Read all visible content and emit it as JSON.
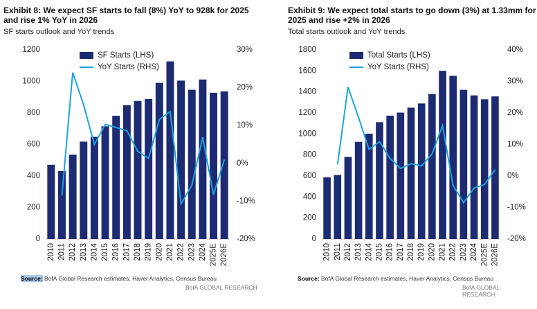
{
  "chart_data": [
    {
      "type": "combo",
      "title": "Exhibit 8: We expect SF starts to fall (8%) YoY to 928k for 2025 and rise 1% YoY in 2026",
      "subtitle": "SF starts outlook and YoY trends",
      "categories": [
        "2010",
        "2011",
        "2012",
        "2013",
        "2014",
        "2015",
        "2016",
        "2017",
        "2018",
        "2019",
        "2020",
        "2021",
        "2022",
        "2023",
        "2024",
        "2025E",
        "2026E"
      ],
      "series": [
        {
          "name": "SF Starts (LHS)",
          "color": "#1c2b72",
          "kind": "bar",
          "values": [
            471,
            431,
            535,
            618,
            648,
            715,
            782,
            849,
            876,
            888,
            991,
            1127,
            1005,
            947,
            1012,
            928,
            937
          ]
        },
        {
          "name": "YoY Starts (RHS)",
          "color": "#1ba1e2",
          "kind": "line",
          "axis": "y2",
          "values": [
            null,
            -8.5,
            24,
            15.5,
            5,
            10.3,
            9.5,
            8.6,
            3.2,
            1.3,
            11.6,
            13.7,
            -10.7,
            -5.8,
            6.9,
            -8.3,
            1.0
          ]
        }
      ],
      "ylim": [
        0,
        1200
      ],
      "yticks": [
        0,
        200,
        400,
        600,
        800,
        1000,
        1200
      ],
      "y2lim": [
        -20,
        30
      ],
      "y2ticks": [
        {
          "value": -20,
          "label": "-20%"
        },
        {
          "value": -10,
          "label": "-10%"
        },
        {
          "value": 0,
          "label": "0%"
        },
        {
          "value": 10,
          "label": "10%"
        },
        {
          "value": 20,
          "label": "20%"
        },
        {
          "value": 30,
          "label": "30%"
        }
      ],
      "source_label": "Source:",
      "source": "BofA Global Research estimates, Haver Analytics, Census Bureau",
      "footer": "BofA GLOBAL RESEARCH"
    },
    {
      "type": "combo",
      "title": "Exhibit 9: We expect total starts to go down (3%) at 1.33mm for 2025 and rise +2% in 2026",
      "subtitle": "Total starts outlook and YoY trends",
      "categories": [
        "2010",
        "2011",
        "2012",
        "2013",
        "2014",
        "2015",
        "2016",
        "2017",
        "2018",
        "2019",
        "2020",
        "2021",
        "2022",
        "2023",
        "2024",
        "2025E",
        "2026E"
      ],
      "series": [
        {
          "name": "Total Starts (LHS)",
          "color": "#1c2b72",
          "kind": "bar",
          "values": [
            587,
            609,
            781,
            925,
            1003,
            1112,
            1174,
            1203,
            1250,
            1290,
            1380,
            1601,
            1553,
            1420,
            1367,
            1330,
            1357
          ]
        },
        {
          "name": "YoY Starts (RHS)",
          "color": "#1ba1e2",
          "kind": "line",
          "axis": "y2",
          "values": [
            null,
            3.7,
            28.2,
            18.6,
            8.4,
            10.9,
            5.6,
            2.4,
            3.9,
            3.2,
            7.0,
            16.0,
            -3.0,
            -8.5,
            -3.8,
            -2.7,
            2.0
          ]
        }
      ],
      "ylim": [
        0,
        1800
      ],
      "yticks": [
        0,
        200,
        400,
        600,
        800,
        1000,
        1200,
        1400,
        1600,
        1800
      ],
      "y2lim": [
        -20,
        40
      ],
      "y2ticks": [
        {
          "value": -20,
          "label": "-20%"
        },
        {
          "value": -10,
          "label": "-10%"
        },
        {
          "value": 0,
          "label": "0%"
        },
        {
          "value": 10,
          "label": "10%"
        },
        {
          "value": 20,
          "label": "20%"
        },
        {
          "value": 30,
          "label": "30%"
        },
        {
          "value": 40,
          "label": "40%"
        }
      ],
      "source_label": "Source:",
      "source": "BofA Global Research estimates, Haver Analytics, Census Bureau",
      "footer": "BofA GLOBAL RESEARCH"
    }
  ]
}
